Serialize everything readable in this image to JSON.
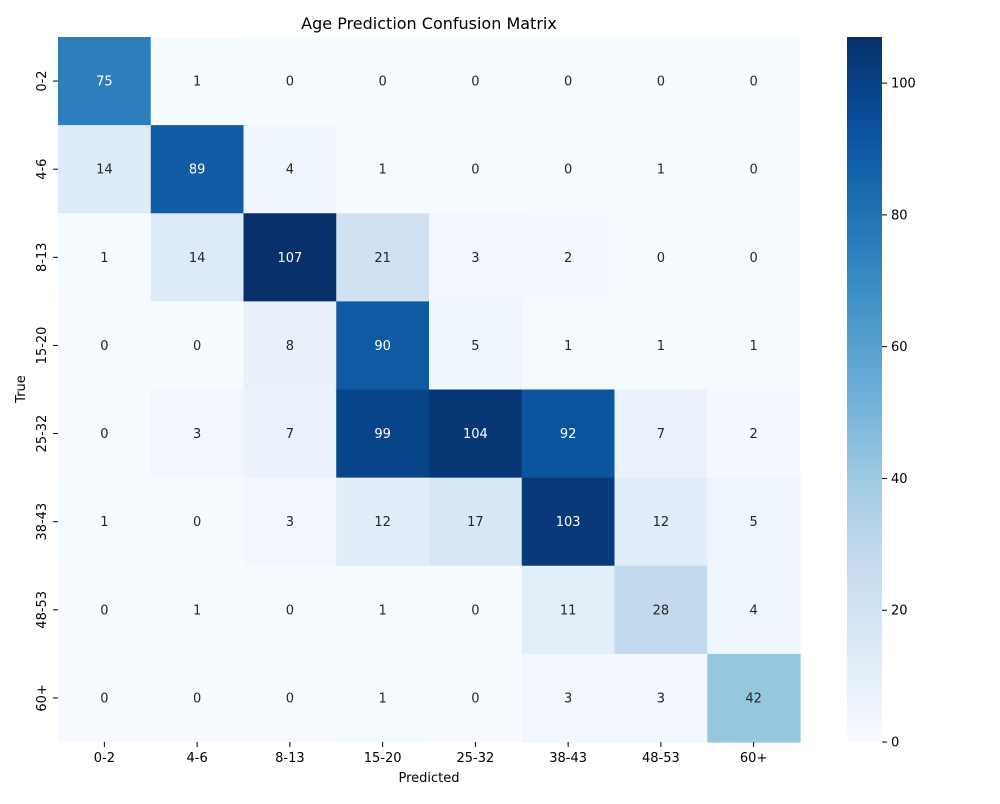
{
  "chart_data": {
    "type": "heatmap",
    "title": "Age Prediction Confusion Matrix",
    "xlabel": "Predicted",
    "ylabel": "True",
    "x_categories": [
      "0-2",
      "4-6",
      "8-13",
      "15-20",
      "25-32",
      "38-43",
      "48-53",
      "60+"
    ],
    "y_categories": [
      "0-2",
      "4-6",
      "8-13",
      "15-20",
      "25-32",
      "38-43",
      "48-53",
      "60+"
    ],
    "values": [
      [
        75,
        1,
        0,
        0,
        0,
        0,
        0,
        0
      ],
      [
        14,
        89,
        4,
        1,
        0,
        0,
        1,
        0
      ],
      [
        1,
        14,
        107,
        21,
        3,
        2,
        0,
        0
      ],
      [
        0,
        0,
        8,
        90,
        5,
        1,
        1,
        1
      ],
      [
        0,
        3,
        7,
        99,
        104,
        92,
        7,
        2
      ],
      [
        1,
        0,
        3,
        12,
        17,
        103,
        12,
        5
      ],
      [
        0,
        1,
        0,
        1,
        0,
        11,
        28,
        4
      ],
      [
        0,
        0,
        0,
        1,
        0,
        3,
        3,
        42
      ]
    ],
    "colormap": "Blues",
    "color_range": [
      0,
      107
    ],
    "colorbar_ticks": [
      0,
      20,
      40,
      60,
      80,
      100
    ],
    "annotations": true
  }
}
